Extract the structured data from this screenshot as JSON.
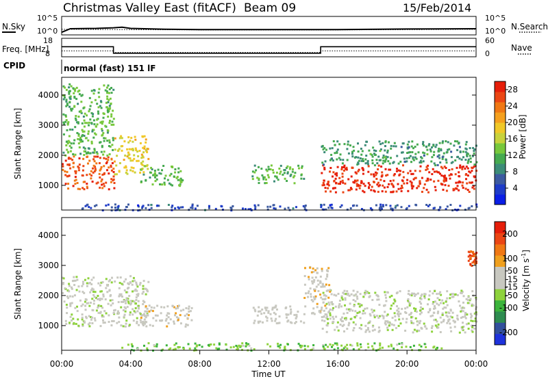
{
  "header": {
    "station": "Christmas Valley East (fitACF)",
    "beam": "Beam 09",
    "date": "15/Feb/2014"
  },
  "chart_data": [
    {
      "type": "line",
      "panel": "noise",
      "left_label": "N.Sky",
      "right_label": "N.Search",
      "left_ticks": [
        "10^5",
        "10^0"
      ],
      "right_ticks": [
        "10^5",
        "10^0"
      ],
      "series": [
        {
          "name": "N.Sky",
          "style": "solid",
          "x": [
            "00:00",
            "00:30",
            "02:00",
            "03:00",
            "03:30",
            "04:00",
            "06:00",
            "08:00",
            "12:00",
            "16:00",
            "20:00",
            "24:00"
          ],
          "values": [
            0.4,
            1.6,
            1.7,
            1.9,
            2.1,
            1.7,
            1.4,
            1.3,
            1.3,
            1.3,
            1.5,
            1.6
          ]
        },
        {
          "name": "N.Search",
          "style": "dotted",
          "x": [
            "00:00",
            "04:00",
            "08:00",
            "12:00",
            "16:00",
            "20:00",
            "24:00"
          ],
          "values": [
            1.4,
            1.3,
            1.2,
            1.2,
            1.2,
            1.3,
            1.4
          ]
        }
      ]
    },
    {
      "type": "line",
      "panel": "frequency",
      "left_label": "Freq. [MHz]",
      "right_label": "Nave",
      "left_ticks": [
        "18",
        "8"
      ],
      "right_ticks": [
        "60",
        "0"
      ],
      "series": [
        {
          "name": "Freq.",
          "unit": "MHz",
          "style": "solid",
          "x": [
            "00:00",
            "03:00",
            "03:00",
            "15:00",
            "15:00",
            "24:00"
          ],
          "values": [
            15.2,
            15.2,
            10.2,
            10.2,
            15.2,
            15.2
          ]
        },
        {
          "name": "Nave",
          "style": "dotted",
          "x": [
            "00:00",
            "03:00",
            "03:00",
            "15:00",
            "15:00",
            "24:00"
          ],
          "values": [
            24,
            24,
            17,
            17,
            24,
            24
          ]
        }
      ]
    },
    {
      "type": "heatmap",
      "panel": "cpid",
      "label": "CPID",
      "text": "normal (fast) 151 lF"
    },
    {
      "type": "heatmap",
      "panel": "power",
      "quantity": "Power",
      "unit": "dB",
      "ylabel": "Slant Range [km]",
      "xlabel": "Time UT",
      "x_ticks": [
        "00:00",
        "04:00",
        "08:00",
        "12:00",
        "16:00",
        "20:00",
        "00:00"
      ],
      "y_ticks": [
        "1000",
        "2000",
        "3000",
        "4000"
      ],
      "ylim": [
        180,
        4590
      ],
      "colorbar_ticks": [
        "4",
        "8",
        "12",
        "16",
        "20",
        "24",
        "28"
      ],
      "colorbar_range": [
        0,
        30
      ],
      "colors": [
        "#0a1ee6",
        "#1e3cc8",
        "#3c5aa0",
        "#3c8c78",
        "#46aa50",
        "#78c83c",
        "#c8d23c",
        "#f0c828",
        "#f5a01e",
        "#f07814",
        "#eb4614",
        "#e61e0a"
      ],
      "echo_regions": [
        {
          "t_start": "00:00",
          "t_end": "03:00",
          "r_min": 900,
          "r_max": 2000,
          "power_db": 26
        },
        {
          "t_start": "00:00",
          "t_end": "03:00",
          "r_min": 2000,
          "r_max": 4400,
          "power_db": 12
        },
        {
          "t_start": "03:00",
          "t_end": "05:00",
          "r_min": 1400,
          "r_max": 2700,
          "power_db": 18
        },
        {
          "t_start": "04:30",
          "t_end": "07:00",
          "r_min": 1000,
          "r_max": 1700,
          "power_db": 12
        },
        {
          "t_start": "11:00",
          "t_end": "14:00",
          "r_min": 1100,
          "r_max": 1700,
          "power_db": 12
        },
        {
          "t_start": "15:00",
          "t_end": "24:00",
          "r_min": 800,
          "r_max": 1700,
          "power_db": 28
        },
        {
          "t_start": "15:00",
          "t_end": "24:00",
          "r_min": 1700,
          "r_max": 2500,
          "power_db": 10
        },
        {
          "t_start": "01:00",
          "t_end": "24:00",
          "r_min": 200,
          "r_max": 400,
          "power_db": 5
        }
      ]
    },
    {
      "type": "heatmap",
      "panel": "velocity",
      "quantity": "Velocity",
      "unit": "m s^-1",
      "ylabel": "Slant Range [km]",
      "xlabel": "Time UT",
      "x_ticks": [
        "00:00",
        "04:00",
        "08:00",
        "12:00",
        "16:00",
        "20:00",
        "00:00"
      ],
      "y_ticks": [
        "1000",
        "2000",
        "3000",
        "4000"
      ],
      "ylim": [
        180,
        4590
      ],
      "colorbar_ticks": [
        "200",
        "100",
        "50",
        "15",
        "-15",
        "-50",
        "-100",
        "-200"
      ],
      "colorbar_range": [
        -250,
        250
      ],
      "colors": [
        "#1e32dc",
        "#32509c",
        "#2e8c50",
        "#3cb43c",
        "#8ed23c",
        "#c8c8c0",
        "#c8c8c0",
        "#f0a01e",
        "#f07814",
        "#eb4614",
        "#e61e0a"
      ],
      "echo_regions": [
        {
          "t_start": "00:00",
          "t_end": "05:00",
          "r_min": 1000,
          "r_max": 2700,
          "velocity_ms": 0
        },
        {
          "t_start": "04:30",
          "t_end": "07:30",
          "r_min": 1000,
          "r_max": 1700,
          "velocity_ms": 30
        },
        {
          "t_start": "11:00",
          "t_end": "14:00",
          "r_min": 1100,
          "r_max": 1700,
          "velocity_ms": 20
        },
        {
          "t_start": "15:00",
          "t_end": "24:00",
          "r_min": 800,
          "r_max": 2200,
          "velocity_ms": 0
        },
        {
          "t_start": "14:00",
          "t_end": "15:30",
          "r_min": 1300,
          "r_max": 3000,
          "velocity_ms": 40
        },
        {
          "t_start": "03:00",
          "t_end": "22:00",
          "r_min": 200,
          "r_max": 450,
          "velocity_ms": -60
        },
        {
          "t_start": "23:30",
          "t_end": "24:00",
          "r_min": 3000,
          "r_max": 3500,
          "velocity_ms": 180
        }
      ]
    }
  ]
}
